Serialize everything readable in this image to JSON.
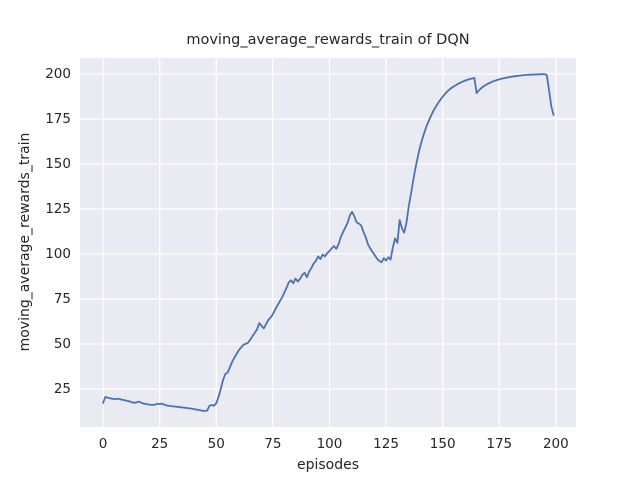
{
  "chart_data": {
    "type": "line",
    "title": "moving_average_rewards_train of DQN",
    "xlabel": "episodes",
    "ylabel": "moving_average_rewards_train",
    "xlim": [
      -10.2,
      208.9
    ],
    "ylim": [
      3.9,
      208.9
    ],
    "xticks": [
      0,
      25,
      50,
      75,
      100,
      125,
      150,
      175,
      200
    ],
    "yticks": [
      25,
      50,
      75,
      100,
      125,
      150,
      175,
      200
    ],
    "grid": true,
    "legend": false,
    "colors": {
      "figure_bg": "#ffffff",
      "plot_bg": "#eaeaf2",
      "grid": "#ffffff",
      "text": "#262626",
      "line": "#4c72b0"
    },
    "series": [
      {
        "name": "moving_average_rewards_train",
        "color": "#4c72b0",
        "points": [
          [
            0,
            17.3
          ],
          [
            1,
            20.6
          ],
          [
            2,
            20.2
          ],
          [
            3,
            19.9
          ],
          [
            5,
            19.4
          ],
          [
            7,
            19.6
          ],
          [
            8,
            19.2
          ],
          [
            10,
            18.6
          ],
          [
            12,
            18.0
          ],
          [
            13,
            17.6
          ],
          [
            14,
            17.3
          ],
          [
            15,
            17.7
          ],
          [
            16,
            18.0
          ],
          [
            17,
            17.3
          ],
          [
            18,
            16.9
          ],
          [
            20,
            16.4
          ],
          [
            22,
            16.1
          ],
          [
            23,
            16.4
          ],
          [
            24,
            16.8
          ],
          [
            25,
            16.6
          ],
          [
            26,
            16.9
          ],
          [
            27,
            16.3
          ],
          [
            28,
            15.9
          ],
          [
            30,
            15.5
          ],
          [
            32,
            15.2
          ],
          [
            34,
            14.9
          ],
          [
            36,
            14.6
          ],
          [
            38,
            14.3
          ],
          [
            40,
            13.9
          ],
          [
            42,
            13.4
          ],
          [
            44,
            12.9
          ],
          [
            45,
            12.8
          ],
          [
            46,
            13.1
          ],
          [
            47,
            15.7
          ],
          [
            48,
            16.1
          ],
          [
            49,
            15.7
          ],
          [
            50,
            17.1
          ],
          [
            51,
            20.6
          ],
          [
            52,
            25.1
          ],
          [
            53,
            30.1
          ],
          [
            54,
            33.4
          ],
          [
            55,
            34.1
          ],
          [
            56,
            37.1
          ],
          [
            57,
            40.1
          ],
          [
            58,
            42.4
          ],
          [
            59,
            44.6
          ],
          [
            60,
            46.6
          ],
          [
            61,
            48.1
          ],
          [
            62,
            49.6
          ],
          [
            63,
            50.1
          ],
          [
            64,
            50.7
          ],
          [
            65,
            52.4
          ],
          [
            66,
            54.4
          ],
          [
            67,
            56.2
          ],
          [
            68,
            58.2
          ],
          [
            69,
            61.6
          ],
          [
            70,
            60.1
          ],
          [
            71,
            58.7
          ],
          [
            72,
            61.1
          ],
          [
            73,
            63.4
          ],
          [
            74,
            64.7
          ],
          [
            75,
            66.6
          ],
          [
            76,
            69.1
          ],
          [
            77,
            71.4
          ],
          [
            78,
            73.6
          ],
          [
            79,
            75.7
          ],
          [
            80,
            78.4
          ],
          [
            81,
            81.1
          ],
          [
            82,
            84.2
          ],
          [
            83,
            85.4
          ],
          [
            84,
            83.7
          ],
          [
            85,
            86.4
          ],
          [
            86,
            84.7
          ],
          [
            87,
            86.2
          ],
          [
            88,
            88.4
          ],
          [
            89,
            89.6
          ],
          [
            90,
            87.1
          ],
          [
            91,
            90.2
          ],
          [
            92,
            92.2
          ],
          [
            93,
            94.7
          ],
          [
            94,
            96.2
          ],
          [
            95,
            98.7
          ],
          [
            96,
            97.2
          ],
          [
            97,
            99.7
          ],
          [
            98,
            98.7
          ],
          [
            99,
            100.4
          ],
          [
            100,
            101.7
          ],
          [
            101,
            103.2
          ],
          [
            102,
            104.4
          ],
          [
            103,
            102.9
          ],
          [
            104,
            105.4
          ],
          [
            105,
            109.4
          ],
          [
            106,
            112.2
          ],
          [
            107,
            114.7
          ],
          [
            108,
            117.4
          ],
          [
            109,
            121.4
          ],
          [
            110,
            123.4
          ],
          [
            111,
            120.9
          ],
          [
            112,
            117.6
          ],
          [
            113,
            116.9
          ],
          [
            114,
            115.9
          ],
          [
            115,
            112.4
          ],
          [
            116,
            109.4
          ],
          [
            117,
            105.4
          ],
          [
            118,
            103.2
          ],
          [
            119,
            101.2
          ],
          [
            120,
            99.4
          ],
          [
            121,
            97.4
          ],
          [
            122,
            96.2
          ],
          [
            123,
            95.4
          ],
          [
            124,
            97.7
          ],
          [
            125,
            96.4
          ],
          [
            126,
            98.2
          ],
          [
            127,
            96.9
          ],
          [
            128,
            103.7
          ],
          [
            129,
            108.7
          ],
          [
            130,
            106.2
          ],
          [
            131,
            118.9
          ],
          [
            132,
            114.4
          ],
          [
            133,
            111.9
          ],
          [
            134,
            117.2
          ],
          [
            135,
            126.4
          ],
          [
            136,
            133.4
          ],
          [
            137,
            140.9
          ],
          [
            138,
            147.9
          ],
          [
            139,
            153.9
          ],
          [
            140,
            159.4
          ],
          [
            141,
            163.9
          ],
          [
            142,
            167.9
          ],
          [
            143,
            171.4
          ],
          [
            144,
            174.4
          ],
          [
            145,
            177.2
          ],
          [
            146,
            179.7
          ],
          [
            147,
            181.9
          ],
          [
            148,
            183.9
          ],
          [
            149,
            185.7
          ],
          [
            150,
            187.4
          ],
          [
            151,
            188.9
          ],
          [
            152,
            190.2
          ],
          [
            153,
            191.4
          ],
          [
            154,
            192.4
          ],
          [
            155,
            193.2
          ],
          [
            156,
            193.9
          ],
          [
            157,
            194.7
          ],
          [
            158,
            195.3
          ],
          [
            159,
            195.9
          ],
          [
            160,
            196.4
          ],
          [
            161,
            196.8
          ],
          [
            162,
            197.2
          ],
          [
            163,
            197.5
          ],
          [
            164,
            197.8
          ],
          [
            165,
            189.4
          ],
          [
            166,
            190.9
          ],
          [
            167,
            192.1
          ],
          [
            168,
            193.1
          ],
          [
            169,
            193.9
          ],
          [
            170,
            194.6
          ],
          [
            172,
            195.8
          ],
          [
            174,
            196.7
          ],
          [
            176,
            197.4
          ],
          [
            178,
            197.9
          ],
          [
            180,
            198.4
          ],
          [
            182,
            198.8
          ],
          [
            184,
            199.1
          ],
          [
            186,
            199.4
          ],
          [
            188,
            199.6
          ],
          [
            190,
            199.7
          ],
          [
            192,
            199.8
          ],
          [
            194,
            199.9
          ],
          [
            195,
            199.9
          ],
          [
            196,
            199.4
          ],
          [
            197,
            191.0
          ],
          [
            198,
            182.0
          ],
          [
            199,
            177.2
          ]
        ]
      }
    ]
  }
}
